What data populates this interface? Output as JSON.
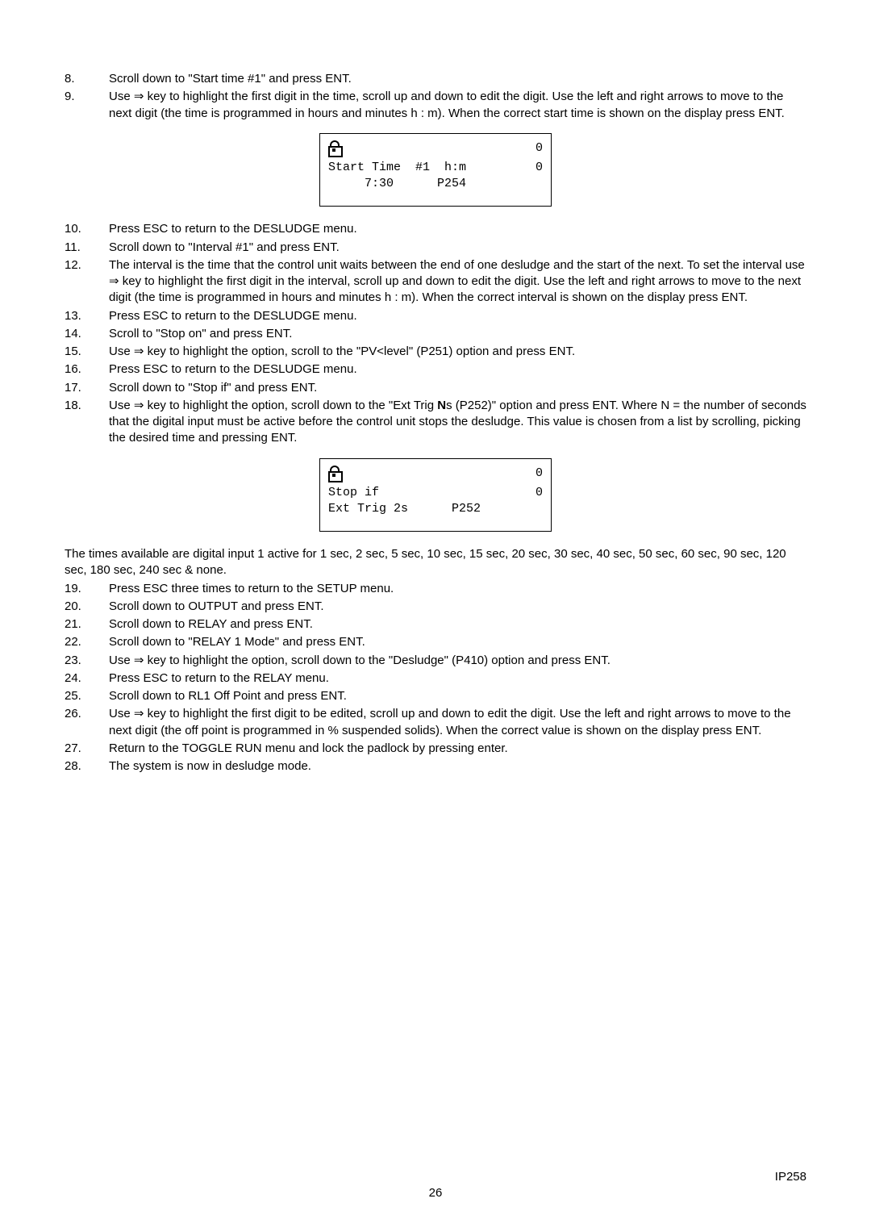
{
  "steps_a": [
    {
      "n": "8.",
      "t": "Scroll down to \"Start time #1\" and press ENT."
    },
    {
      "n": "9.",
      "t": "Use ⇒ key to highlight the first digit in the time, scroll up and down to edit the digit. Use the left and right arrows to move to the next digit (the time is programmed in hours and minutes h : m). When the correct start time is shown on the display press ENT."
    }
  ],
  "lcd1": {
    "r1_right": "0",
    "r2_left": "Start Time  #1  h:m",
    "r2_right": "0",
    "r3_left": "     7:30      P254"
  },
  "steps_b": [
    {
      "n": "10.",
      "t": "Press ESC to return to the DESLUDGE menu."
    },
    {
      "n": "11.",
      "t": "Scroll down to \"Interval #1\" and press ENT."
    },
    {
      "n": "12.",
      "t": "The interval is the time that the control unit waits between the end of one desludge and the start of the next. To set the interval use ⇒ key to highlight the first digit in the interval, scroll up and down to edit the digit. Use the left and right arrows to move to the next digit (the time is programmed in hours and minutes h : m). When the correct interval is shown on the display press ENT."
    },
    {
      "n": "13.",
      "t": "Press ESC to return to the DESLUDGE menu."
    },
    {
      "n": "14.",
      "t": "Scroll to \"Stop on\" and press ENT."
    },
    {
      "n": "15.",
      "t": "Use ⇒ key to highlight the option, scroll to the \"PV<level\" (P251) option and press ENT."
    },
    {
      "n": "16.",
      "t": "Press ESC to return to the DESLUDGE menu."
    },
    {
      "n": "17.",
      "t": "Scroll down to \"Stop  if\" and press ENT."
    }
  ],
  "step18": {
    "n": "18.",
    "pre": "Use ⇒ key to highlight the option, scroll down to the \"Ext Trig ",
    "bold": "N",
    "post": "s (P252)\" option and press ENT. Where N = the number of seconds that the digital input must be active before the control unit stops the desludge. This value is chosen from a list by scrolling, picking the desired time and pressing ENT."
  },
  "lcd2": {
    "r1_right": "0",
    "r2_left": "Stop if",
    "r2_right": "0",
    "r3_left": "Ext Trig 2s      P252"
  },
  "para_times": "The times available are digital input 1 active for 1 sec, 2 sec, 5 sec, 10 sec, 15 sec, 20 sec, 30 sec, 40 sec, 50 sec, 60 sec, 90 sec, 120 sec, 180 sec, 240 sec & none.",
  "steps_c": [
    {
      "n": "19.",
      "t": "Press ESC three times to return to the SETUP menu."
    },
    {
      "n": "20.",
      "t": "Scroll down to OUTPUT and press ENT."
    },
    {
      "n": "21.",
      "t": "Scroll down to RELAY and press ENT."
    },
    {
      "n": "22.",
      "t": "Scroll down to \"RELAY 1 Mode\" and press ENT."
    },
    {
      "n": "23.",
      "t": "Use ⇒ key to highlight the option, scroll down to the \"Desludge\" (P410) option and press ENT."
    },
    {
      "n": "24.",
      "t": "Press ESC to return to the RELAY menu."
    },
    {
      "n": "25.",
      "t": "Scroll down to RL1 Off Point and press ENT."
    },
    {
      "n": "26.",
      "t": "Use ⇒ key to highlight the first digit to be edited, scroll up and down to edit the digit. Use the left and right arrows to move to the next digit (the off point is programmed in % suspended solids). When the correct value is shown on the display press ENT."
    },
    {
      "n": "27.",
      "t": "Return to the TOGGLE RUN menu and lock the padlock by pressing enter."
    },
    {
      "n": "28.",
      "t": "The system is now in desludge mode."
    }
  ],
  "footer_code": "IP258",
  "footer_page": "26"
}
